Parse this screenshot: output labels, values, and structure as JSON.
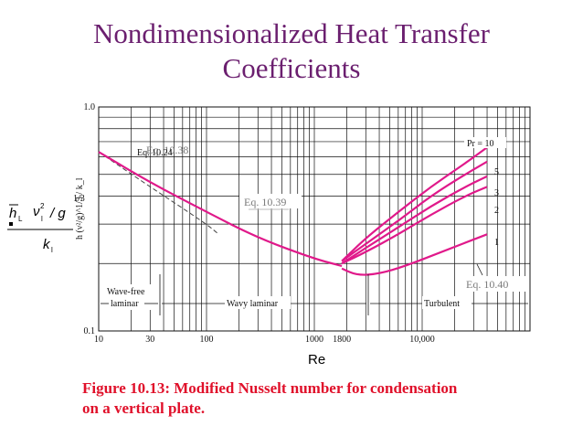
{
  "slide": {
    "title_line1": "Nondimensionalized Heat Transfer",
    "title_line2": "Coefficients",
    "caption_line1": "Figure 10.13: Modified Nusselt number for condensation",
    "caption_line2": "on a vertical plate."
  },
  "chart_data": {
    "type": "line",
    "xlabel": "Re",
    "ylabel_figure": "h (ν²/g)^1/3 / k_l",
    "ylabel_overlay": {
      "h": "h",
      "sub_L": "L",
      "nu": "ν",
      "sup2": "2",
      "sub_l": "l",
      "slash_g": "/ g",
      "exponent": "1/3",
      "k": "k",
      "k_sub": "l"
    },
    "xscale": "log",
    "yscale": "log",
    "xlim": [
      10,
      100000
    ],
    "ylim": [
      0.1,
      1.0
    ],
    "x_ticks": [
      {
        "value": 10,
        "label": "10"
      },
      {
        "value": 30,
        "label": "30"
      },
      {
        "value": 100,
        "label": "100"
      },
      {
        "value": 1000,
        "label": "1000"
      },
      {
        "value": 1800,
        "label": "1800"
      },
      {
        "value": 10000,
        "label": "10,000"
      }
    ],
    "y_ticks": [
      {
        "value": 0.1,
        "label": "0.1"
      },
      {
        "value": 1.0,
        "label": "1.0"
      }
    ],
    "grid": true,
    "line_color": "#e0198a",
    "series": [
      {
        "name": "Eq. 10.38",
        "style": "dashed",
        "color": "#444444",
        "x": [
          10,
          30,
          100,
          130
        ],
        "y": [
          0.63,
          0.44,
          0.3,
          0.27
        ]
      },
      {
        "name": "Eq. 10.39",
        "style": "solid",
        "color": "#e0198a",
        "x": [
          10,
          30,
          100,
          300,
          1000,
          1800
        ],
        "y": [
          0.63,
          0.46,
          0.34,
          0.26,
          0.21,
          0.195
        ]
      },
      {
        "name": "1",
        "style": "solid",
        "color": "#e0198a",
        "x": [
          1800,
          2500,
          4000,
          7000,
          15000,
          40000
        ],
        "y": [
          0.19,
          0.177,
          0.18,
          0.195,
          0.225,
          0.27
        ]
      },
      {
        "name": "2",
        "style": "solid",
        "color": "#e0198a",
        "x": [
          1800,
          3000,
          6000,
          12000,
          25000,
          40000
        ],
        "y": [
          0.2,
          0.225,
          0.27,
          0.33,
          0.4,
          0.44
        ]
      },
      {
        "name": "3",
        "style": "solid",
        "color": "#e0198a",
        "x": [
          1800,
          3000,
          6000,
          12000,
          25000,
          40000
        ],
        "y": [
          0.2,
          0.235,
          0.29,
          0.36,
          0.44,
          0.49
        ]
      },
      {
        "name": "5",
        "style": "solid",
        "color": "#e0198a",
        "x": [
          1800,
          3000,
          6000,
          12000,
          25000,
          40000
        ],
        "y": [
          0.205,
          0.245,
          0.31,
          0.4,
          0.5,
          0.57
        ]
      },
      {
        "name": "Pr = 10",
        "style": "solid",
        "color": "#e0198a",
        "x": [
          1800,
          3000,
          6000,
          12000,
          25000,
          40000
        ],
        "y": [
          0.205,
          0.26,
          0.34,
          0.44,
          0.56,
          0.66
        ]
      }
    ],
    "annotations": {
      "eq_1038": "Eq. 10.38",
      "eq_1039": "Eq. 10.39",
      "eq_1040": "Eq. 10.40",
      "eq_ghost": "Eq. 10.24"
    },
    "regions": {
      "wave_free_line1": "Wave-free",
      "wave_free_line2": "laminar",
      "wavy": "Wavy laminar",
      "turbulent": "Turbulent"
    }
  }
}
